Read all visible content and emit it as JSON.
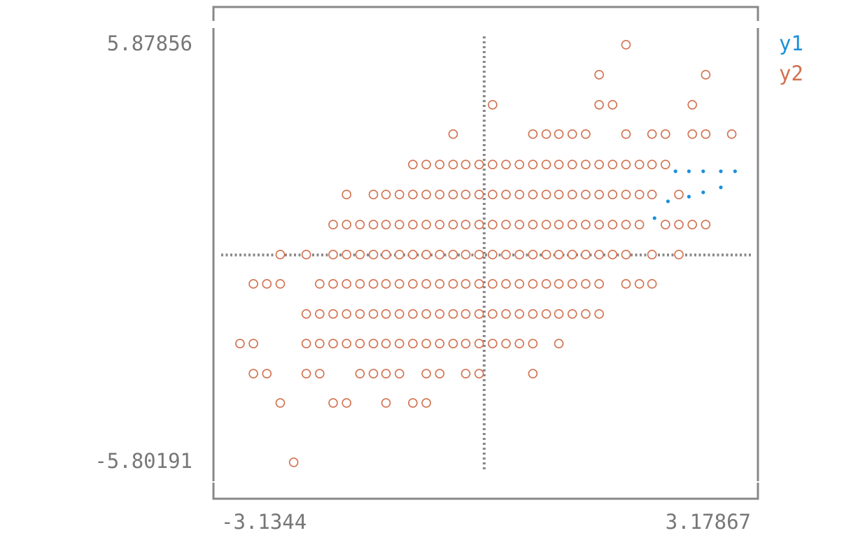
{
  "chart_data": {
    "type": "scatter",
    "xlim": [
      -3.1344,
      3.17867
    ],
    "ylim": [
      -5.80191,
      5.87856
    ],
    "xticks": [
      -3.1344,
      3.17867
    ],
    "yticks": [
      -5.80191,
      5.87856
    ],
    "series": [
      {
        "name": "y1",
        "color": "#1b8fd9",
        "x": [
          2.03,
          2.19,
          2.44,
          2.61,
          2.82,
          2.28,
          2.44,
          2.61,
          2.82,
          2.99
        ],
        "values": [
          1.03,
          1.5,
          1.63,
          1.75,
          1.89,
          2.34,
          2.34,
          2.34,
          2.34,
          2.34
        ]
      },
      {
        "name": "y2",
        "color": "#d2714f",
        "x": [
          1.69,
          1.37,
          2.64,
          0.1,
          1.37,
          1.53,
          2.48,
          -0.37,
          0.58,
          0.74,
          0.89,
          1.05,
          1.21,
          1.69,
          2.0,
          2.16,
          2.48,
          2.64,
          2.95,
          -0.85,
          -0.69,
          -0.53,
          -0.37,
          -0.22,
          -0.06,
          0.1,
          0.26,
          0.42,
          0.58,
          0.74,
          0.89,
          1.05,
          1.21,
          1.37,
          1.53,
          1.69,
          1.85,
          2.0,
          2.16,
          -1.64,
          -1.32,
          -1.17,
          -1.01,
          -0.85,
          -0.69,
          -0.53,
          -0.37,
          -0.22,
          -0.06,
          0.1,
          0.26,
          0.42,
          0.58,
          0.74,
          0.89,
          1.05,
          1.21,
          1.37,
          1.53,
          1.69,
          1.85,
          2.0,
          2.32,
          -1.8,
          -1.64,
          -1.48,
          -1.32,
          -1.17,
          -1.01,
          -0.85,
          -0.69,
          -0.53,
          -0.37,
          -0.22,
          -0.06,
          0.1,
          0.26,
          0.42,
          0.58,
          0.74,
          0.89,
          1.05,
          1.21,
          1.37,
          1.53,
          1.69,
          1.85,
          2.16,
          2.32,
          2.48,
          2.64,
          -2.43,
          -2.12,
          -1.8,
          -1.64,
          -1.48,
          -1.32,
          -1.17,
          -1.01,
          -0.85,
          -0.69,
          -0.53,
          -0.37,
          -0.22,
          -0.06,
          0.1,
          0.26,
          0.42,
          0.58,
          0.74,
          0.89,
          1.05,
          1.21,
          1.37,
          1.53,
          1.69,
          2.0,
          2.32,
          -2.75,
          -2.59,
          -2.43,
          -1.96,
          -1.8,
          -1.64,
          -1.48,
          -1.32,
          -1.17,
          -1.01,
          -0.85,
          -0.69,
          -0.53,
          -0.37,
          -0.22,
          -0.06,
          0.1,
          0.26,
          0.42,
          0.58,
          0.74,
          0.89,
          1.05,
          1.21,
          1.37,
          1.69,
          1.85,
          2.0,
          -2.12,
          -1.96,
          -1.8,
          -1.64,
          -1.48,
          -1.32,
          -1.17,
          -1.01,
          -0.85,
          -0.69,
          -0.53,
          -0.37,
          -0.22,
          -0.06,
          0.1,
          0.26,
          0.42,
          0.58,
          0.74,
          0.89,
          1.05,
          1.21,
          1.37,
          -2.91,
          -2.75,
          -2.12,
          -1.96,
          -1.8,
          -1.64,
          -1.48,
          -1.32,
          -1.17,
          -1.01,
          -0.85,
          -0.69,
          -0.53,
          -0.37,
          -0.22,
          -0.06,
          0.1,
          0.26,
          0.42,
          0.58,
          0.89,
          -2.75,
          -2.59,
          -2.12,
          -1.96,
          -1.48,
          -1.32,
          -1.17,
          -1.01,
          -0.69,
          -0.53,
          -0.22,
          -0.06,
          0.58,
          -2.43,
          -1.8,
          -1.64,
          -1.17,
          -0.85,
          -0.69,
          -2.27
        ],
        "values": [
          5.88,
          5.04,
          5.04,
          4.2,
          4.2,
          4.2,
          4.2,
          3.38,
          3.38,
          3.38,
          3.38,
          3.38,
          3.38,
          3.38,
          3.38,
          3.38,
          3.38,
          3.38,
          3.38,
          2.53,
          2.53,
          2.53,
          2.53,
          2.53,
          2.53,
          2.53,
          2.53,
          2.53,
          2.53,
          2.53,
          2.53,
          2.53,
          2.53,
          2.53,
          2.53,
          2.53,
          2.53,
          2.53,
          2.53,
          1.69,
          1.69,
          1.69,
          1.69,
          1.69,
          1.69,
          1.69,
          1.69,
          1.69,
          1.69,
          1.69,
          1.69,
          1.69,
          1.69,
          1.69,
          1.69,
          1.69,
          1.69,
          1.69,
          1.69,
          1.69,
          1.69,
          1.69,
          1.69,
          0.85,
          0.85,
          0.85,
          0.85,
          0.85,
          0.85,
          0.85,
          0.85,
          0.85,
          0.85,
          0.85,
          0.85,
          0.85,
          0.85,
          0.85,
          0.85,
          0.85,
          0.85,
          0.85,
          0.85,
          0.85,
          0.85,
          0.85,
          0.85,
          0.85,
          0.85,
          0.85,
          0.85,
          0.01,
          0.01,
          0.01,
          0.01,
          0.01,
          0.01,
          0.01,
          0.01,
          0.01,
          0.01,
          0.01,
          0.01,
          0.01,
          0.01,
          0.01,
          0.01,
          0.01,
          0.01,
          0.01,
          0.01,
          0.01,
          0.01,
          0.01,
          0.01,
          0.01,
          0.01,
          0.01,
          -0.81,
          -0.81,
          -0.81,
          -0.81,
          -0.81,
          -0.81,
          -0.81,
          -0.81,
          -0.81,
          -0.81,
          -0.81,
          -0.81,
          -0.81,
          -0.81,
          -0.81,
          -0.81,
          -0.81,
          -0.81,
          -0.81,
          -0.81,
          -0.81,
          -0.81,
          -0.81,
          -0.81,
          -0.81,
          -0.81,
          -0.81,
          -0.81,
          -1.65,
          -1.65,
          -1.65,
          -1.65,
          -1.65,
          -1.65,
          -1.65,
          -1.65,
          -1.65,
          -1.65,
          -1.65,
          -1.65,
          -1.65,
          -1.65,
          -1.65,
          -1.65,
          -1.65,
          -1.65,
          -1.65,
          -1.65,
          -1.65,
          -1.65,
          -1.65,
          -2.48,
          -2.48,
          -2.48,
          -2.48,
          -2.48,
          -2.48,
          -2.48,
          -2.48,
          -2.48,
          -2.48,
          -2.48,
          -2.48,
          -2.48,
          -2.48,
          -2.48,
          -2.48,
          -2.48,
          -2.48,
          -2.48,
          -2.48,
          -2.48,
          -3.32,
          -3.32,
          -3.32,
          -3.32,
          -3.32,
          -3.32,
          -3.32,
          -3.32,
          -3.32,
          -3.32,
          -3.32,
          -3.32,
          -3.32,
          -4.14,
          -4.14,
          -4.14,
          -4.14,
          -4.14,
          -4.14,
          -5.8
        ]
      }
    ]
  }
}
